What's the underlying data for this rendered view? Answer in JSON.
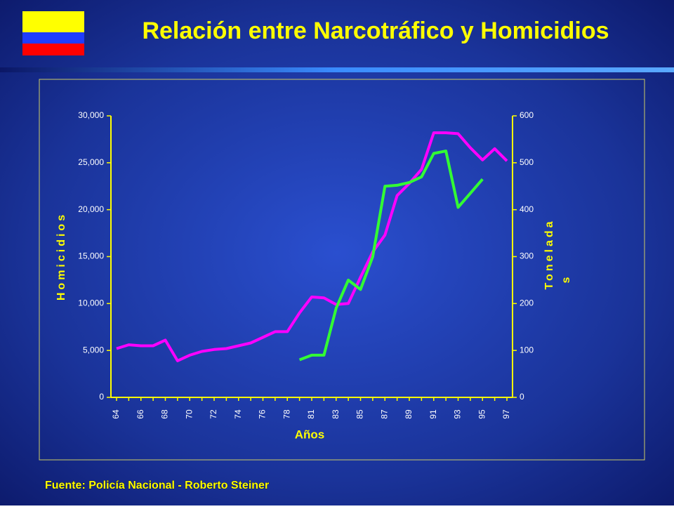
{
  "chart_data": {
    "type": "line",
    "title": "Relación entre Narcotráfico y Homicidios",
    "x_label": "Años",
    "y_label": "Homicidios",
    "y2_label": [
      "Tonelada",
      "s"
    ],
    "source": "Fuente: Policía Nacional - Roberto Steiner",
    "categories": [
      "64",
      null,
      "66",
      null,
      "68",
      null,
      "70",
      null,
      "72",
      null,
      "74",
      null,
      "76",
      null,
      "78",
      null,
      "81",
      null,
      "83",
      null,
      "85",
      null,
      "87",
      null,
      "89",
      null,
      "91",
      null,
      "93",
      null,
      "95",
      null,
      "97"
    ],
    "ylim": [
      0,
      30000
    ],
    "yticks": [
      0,
      {
        "value": 5000,
        "label": "5,000"
      },
      {
        "value": 10000,
        "label": "10,000"
      },
      {
        "value": 15000,
        "label": "15,000"
      },
      {
        "value": 20000,
        "label": "20,000"
      },
      {
        "value": 25000,
        "label": "25,000"
      },
      {
        "value": 30000,
        "label": "30,000"
      }
    ],
    "y2lim": [
      0,
      600
    ],
    "y2ticks": [
      0,
      100,
      200,
      300,
      400,
      500,
      600
    ],
    "series": [
      {
        "name": "Homicidios",
        "color": "#ff00ff",
        "values": [
          5200,
          5600,
          5500,
          5500,
          6100,
          3900,
          4500,
          4900,
          5100,
          5200,
          5500,
          5800,
          6400,
          7000,
          7000,
          9000,
          10700,
          10600,
          9900,
          10000,
          12800,
          15500,
          17300,
          21500,
          22800,
          24300,
          28200,
          28200,
          28100,
          26600,
          25300,
          26500,
          25200
        ]
      },
      {
        "name": "Toneladas",
        "color": "#33ff33",
        "axis": "y2",
        "values": [
          null,
          null,
          null,
          null,
          null,
          null,
          null,
          null,
          null,
          null,
          null,
          null,
          null,
          null,
          null,
          80,
          90,
          90,
          190,
          250,
          230,
          300,
          450,
          452,
          458,
          470,
          520,
          525,
          405,
          435,
          465,
          null,
          null
        ]
      }
    ]
  }
}
